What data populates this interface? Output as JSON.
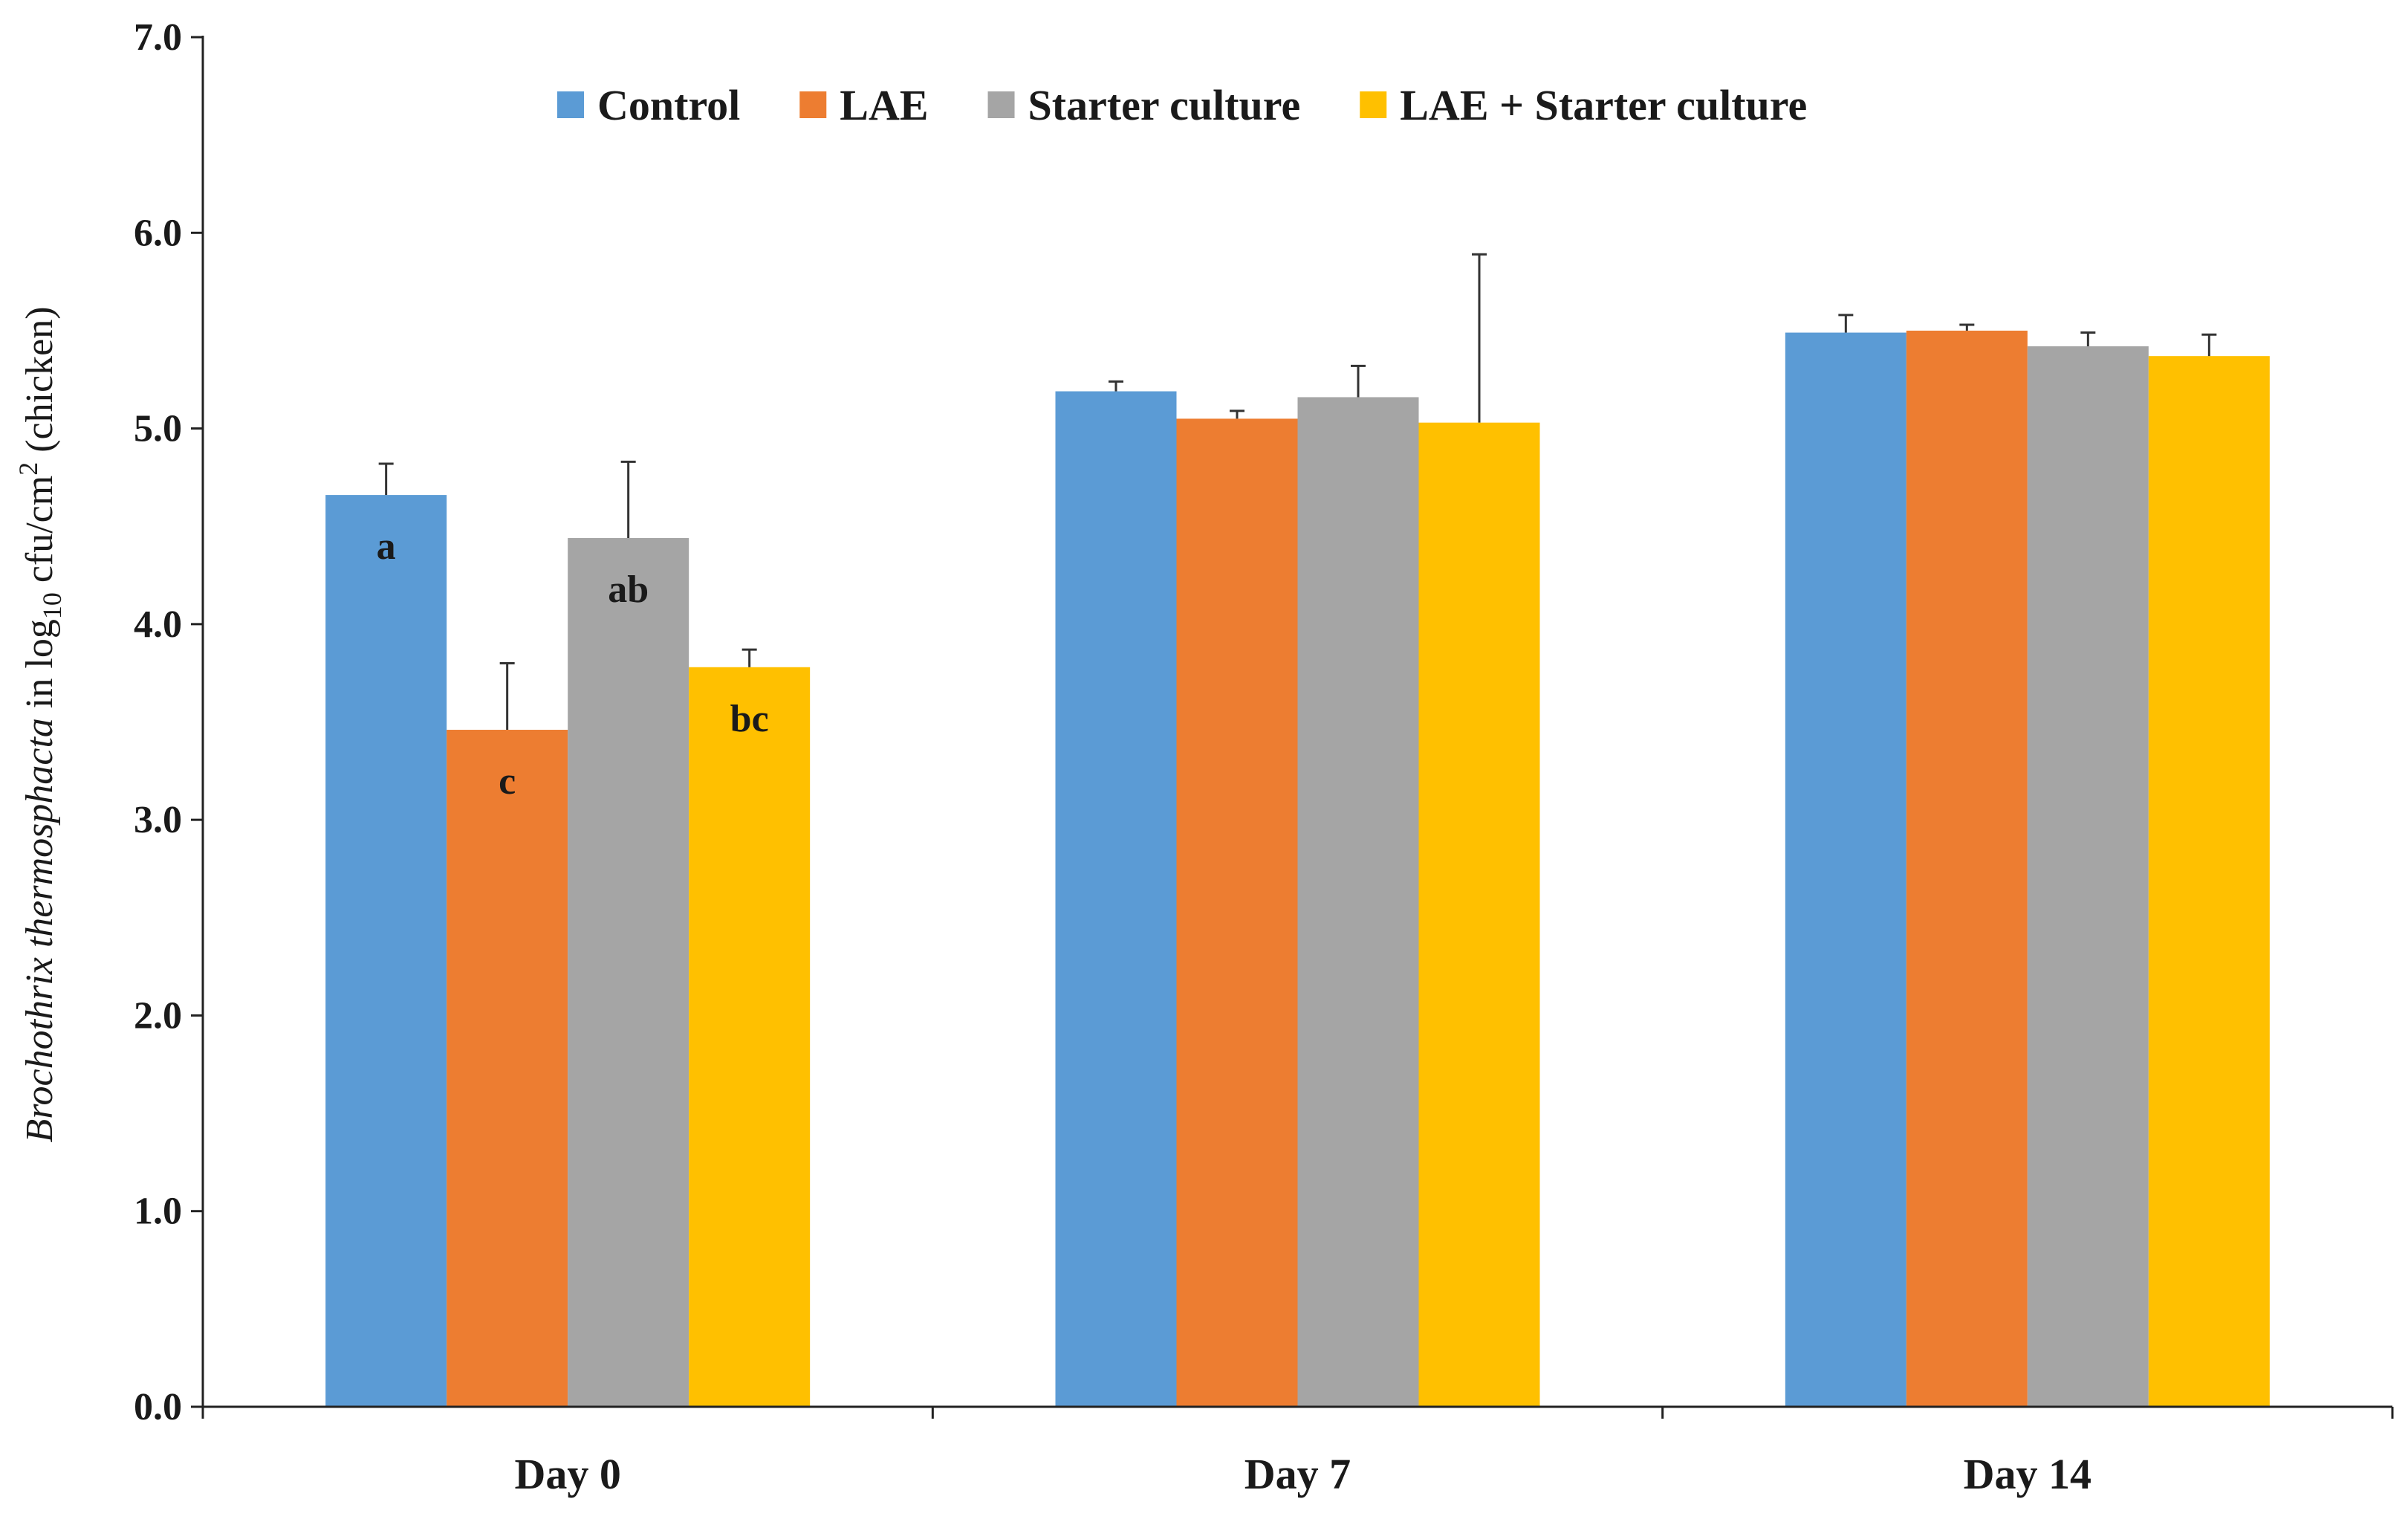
{
  "chart_data": {
    "type": "bar",
    "categories": [
      "Day 0",
      "Day 7",
      "Day 14"
    ],
    "series": [
      {
        "name": "Control",
        "color": "#5B9BD5",
        "values": [
          4.66,
          5.19,
          5.49
        ],
        "errors": [
          0.16,
          0.05,
          0.09
        ],
        "labels": [
          "a",
          "",
          ""
        ]
      },
      {
        "name": "LAE",
        "color": "#ED7D31",
        "values": [
          3.46,
          5.05,
          5.5
        ],
        "errors": [
          0.34,
          0.04,
          0.03
        ],
        "labels": [
          "c",
          "",
          ""
        ]
      },
      {
        "name": "Starter culture",
        "color": "#A5A5A5",
        "values": [
          4.44,
          5.16,
          5.42
        ],
        "errors": [
          0.39,
          0.16,
          0.07
        ],
        "labels": [
          "ab",
          "",
          ""
        ]
      },
      {
        "name": "LAE + Starter culture",
        "color": "#FFC000",
        "values": [
          3.78,
          5.03,
          5.37
        ],
        "errors": [
          0.09,
          0.86,
          0.11
        ],
        "labels": [
          "bc",
          "",
          ""
        ]
      }
    ],
    "ylim": [
      0,
      7
    ],
    "yticks": [
      "0.0",
      "1.0",
      "2.0",
      "3.0",
      "4.0",
      "5.0",
      "6.0",
      "7.0"
    ],
    "ylabel": {
      "italic": "Brochothrix thermosphacta",
      "plain1": " in log",
      "sub": "10",
      "plain2": " cfu/cm",
      "sup": "2",
      "plain3": " (chicken)"
    },
    "xlabel": "",
    "grid": false,
    "legend_position": "top"
  }
}
